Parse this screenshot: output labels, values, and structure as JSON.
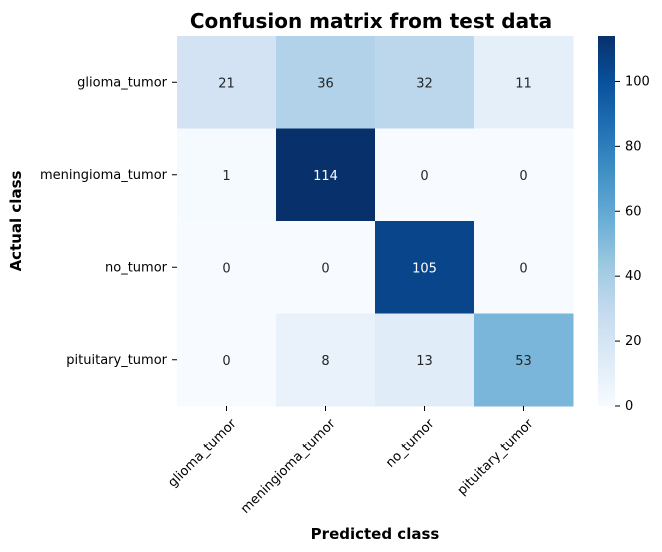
{
  "chart_data": {
    "type": "heatmap",
    "title": "Confusion matrix from test data",
    "xlabel": "Predicted class",
    "ylabel": "Actual class",
    "x_categories": [
      "glioma_tumor",
      "meningioma_tumor",
      "no_tumor",
      "pituitary_tumor"
    ],
    "y_categories": [
      "glioma_tumor",
      "meningioma_tumor",
      "no_tumor",
      "pituitary_tumor"
    ],
    "matrix": [
      [
        21,
        36,
        32,
        11
      ],
      [
        1,
        114,
        0,
        0
      ],
      [
        0,
        0,
        105,
        0
      ],
      [
        0,
        8,
        13,
        53
      ]
    ],
    "value_range": [
      0,
      114
    ],
    "colormap": "Blues",
    "colorbar_ticks": [
      0,
      20,
      40,
      60,
      80,
      100
    ],
    "colorbar_ticks_text": [
      "0",
      "20",
      "40",
      "60",
      "80",
      "100"
    ],
    "x_tick_rotation": "45deg",
    "annotations": true
  }
}
